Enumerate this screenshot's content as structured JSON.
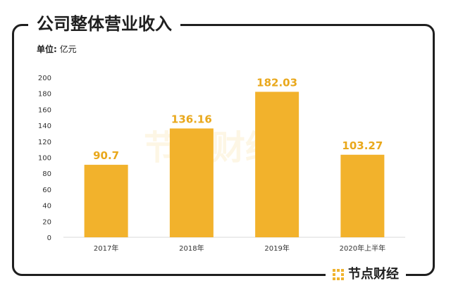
{
  "title": "公司整体营业收入",
  "unit_label": "单位:",
  "unit_value": "亿元",
  "watermark": "节点财经",
  "brand": "节点财经",
  "colors": {
    "bar": "#f2b22c",
    "label": "#e9a81c",
    "text": "#333333",
    "grid": "#d9d9d9"
  },
  "chart_data": {
    "type": "bar",
    "title": "",
    "xlabel": "",
    "ylabel": "",
    "categories": [
      "2017年",
      "2018年",
      "2019年",
      "2020年上半年"
    ],
    "values": [
      90.7,
      136.16,
      182.03,
      103.27
    ],
    "value_labels": [
      "90.7",
      "136.16",
      "182.03",
      "103.27"
    ],
    "ylim": [
      0,
      200
    ],
    "yticks": [
      0,
      20,
      40,
      60,
      80,
      100,
      120,
      140,
      160,
      180,
      200
    ],
    "grid": false
  }
}
